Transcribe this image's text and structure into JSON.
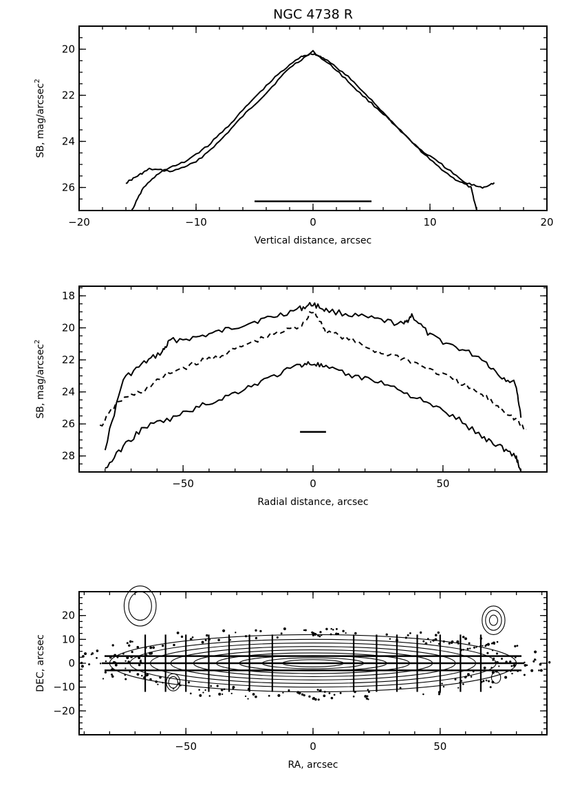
{
  "figure": {
    "title": "NGC 4738 R"
  },
  "chart_data": [
    {
      "type": "line",
      "name": "vertical-profile",
      "xlabel": "Vertical distance, arcsec",
      "ylabel": "SB, mag/arcsec",
      "ylabel_sup": "2",
      "xlim": [
        -20,
        20
      ],
      "ylim": [
        27,
        19
      ],
      "xticks": [
        -20,
        -10,
        0,
        10,
        20
      ],
      "yticks": [
        20,
        22,
        24,
        26
      ],
      "series": [
        {
          "name": "profile-1",
          "x": [
            -16,
            -15,
            -14,
            -12,
            -10,
            -8,
            -6,
            -4,
            -2,
            0,
            2,
            4,
            6,
            8,
            10,
            12,
            13.5,
            14
          ],
          "y": [
            25.8,
            25.5,
            25.2,
            25.3,
            24.9,
            24.0,
            22.9,
            21.9,
            20.8,
            20.1,
            20.9,
            21.9,
            22.8,
            23.8,
            24.8,
            25.6,
            26.0,
            27.0
          ]
        },
        {
          "name": "profile-2",
          "x": [
            -15.5,
            -14.5,
            -13,
            -11,
            -9,
            -7,
            -5,
            -3,
            -1,
            0,
            1,
            3,
            5,
            7,
            9,
            11,
            13,
            14.5,
            15.5
          ],
          "y": [
            27.0,
            26.0,
            25.3,
            24.9,
            24.2,
            23.2,
            22.1,
            21.1,
            20.3,
            20.2,
            20.4,
            21.2,
            22.2,
            23.3,
            24.3,
            25.0,
            25.8,
            26.0,
            25.8
          ]
        }
      ],
      "scale_bar": {
        "x": [
          -5,
          5
        ],
        "y": 26.6
      }
    },
    {
      "type": "line",
      "name": "radial-profile",
      "xlabel": "Radial distance, arcsec",
      "ylabel": "SB, mag/arcsec",
      "ylabel_sup": "2",
      "xlim": [
        -90,
        90
      ],
      "ylim": [
        29,
        17.4
      ],
      "xticks": [
        -50,
        0,
        50
      ],
      "yticks": [
        18,
        20,
        22,
        24,
        26,
        28
      ],
      "series": [
        {
          "name": "upper-edge",
          "style": "solid",
          "x": [
            -80,
            -73,
            -65,
            -58,
            -55,
            -45,
            -35,
            -25,
            -15,
            -5,
            0,
            5,
            15,
            25,
            35,
            38,
            45,
            55,
            65,
            72,
            78,
            80
          ],
          "y": [
            27.5,
            23.2,
            22.2,
            21.5,
            20.8,
            20.6,
            20.2,
            19.7,
            19.3,
            18.8,
            18.5,
            18.9,
            19.2,
            19.5,
            19.8,
            19.2,
            20.5,
            21.2,
            21.9,
            23.0,
            23.5,
            25.5
          ]
        },
        {
          "name": "midplane",
          "style": "dashed",
          "x": [
            -82,
            -75,
            -65,
            -55,
            -45,
            -35,
            -25,
            -15,
            -5,
            0,
            5,
            15,
            25,
            35,
            45,
            55,
            65,
            72,
            78,
            82
          ],
          "y": [
            26.2,
            24.6,
            23.9,
            22.8,
            22.2,
            21.7,
            21.0,
            20.4,
            19.9,
            18.9,
            20.2,
            20.8,
            21.5,
            21.9,
            22.6,
            23.3,
            24.2,
            25.0,
            25.7,
            26.5
          ]
        },
        {
          "name": "lower-edge",
          "style": "solid",
          "x": [
            -80,
            -73,
            -65,
            -55,
            -45,
            -35,
            -25,
            -15,
            -5,
            0,
            5,
            15,
            25,
            35,
            45,
            55,
            65,
            72,
            78,
            80
          ],
          "y": [
            28.8,
            27.4,
            26.2,
            25.7,
            25.0,
            24.4,
            23.7,
            23.0,
            22.3,
            22.2,
            22.5,
            23.0,
            23.3,
            24.0,
            24.8,
            25.6,
            26.8,
            27.4,
            28.0,
            29.0
          ]
        }
      ],
      "scale_bar": {
        "x": [
          -5,
          5
        ],
        "y": 26.5
      }
    },
    {
      "type": "contour",
      "name": "isophote-map",
      "xlabel": "RA, arcsec",
      "ylabel": "DEC, arcsec",
      "xlim": [
        -92,
        92
      ],
      "ylim": [
        -30,
        30
      ],
      "xticks": [
        -50,
        0,
        50
      ],
      "yticks": [
        -20,
        -10,
        0,
        10,
        20
      ],
      "midplane_y": 0,
      "slit_offsets_y": [
        -3,
        3
      ],
      "slit_extent_x": [
        -82,
        82
      ],
      "cut_positions_x": [
        -66,
        -58,
        -50,
        -41,
        -33,
        -25,
        -16,
        16,
        25,
        33,
        41,
        50,
        58,
        66
      ],
      "cut_halflength": 12,
      "isophote_semi_axes": [
        [
          80,
          12
        ],
        [
          72,
          10
        ],
        [
          64,
          8.5
        ],
        [
          56,
          7
        ],
        [
          47,
          5.6
        ],
        [
          38,
          4.3
        ],
        [
          29,
          3.2
        ],
        [
          20,
          2.3
        ],
        [
          12,
          1.5
        ]
      ],
      "stars": [
        {
          "x": -68,
          "y": 24,
          "rings": [
            7,
            5
          ]
        },
        {
          "x": 71,
          "y": 18,
          "rings": [
            5,
            3.5,
            1.8
          ]
        },
        {
          "x": -55,
          "y": -8,
          "rings": [
            3,
            2
          ]
        },
        {
          "x": 72,
          "y": -6,
          "rings": [
            2
          ]
        }
      ]
    }
  ]
}
